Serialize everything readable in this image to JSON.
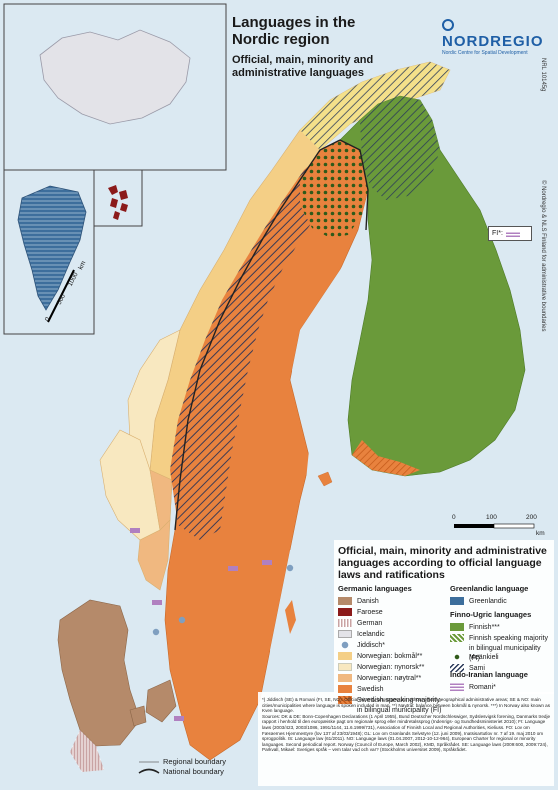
{
  "title": "Languages in the Nordic region",
  "subtitle": "Official, main, minority and administrative languages",
  "logo": {
    "name": "NORDREGIO",
    "tagline": "Nordic Centre for Spatial Development"
  },
  "map_id": "NRL 10145g",
  "copyright": "© Nordregio & NLS Finland for administrative boundaries",
  "inset_scale": {
    "labels": [
      "0",
      "500",
      "1000"
    ],
    "unit": "km"
  },
  "main_scale": {
    "labels": [
      "0",
      "100",
      "200"
    ],
    "unit": "km"
  },
  "fi_label": "FI*:",
  "legend": {
    "title": "Official, main, minority and administrative languages according to official language laws and ratifications",
    "groups": [
      {
        "heading": "Germanic languages",
        "items": [
          {
            "label": "Danish",
            "color": "#b58a6a",
            "pattern": "solid"
          },
          {
            "label": "Faroese",
            "color": "#8b1a1a",
            "pattern": "solid"
          },
          {
            "label": "German",
            "color": "#c9a3a3",
            "pattern": "vstripe"
          },
          {
            "label": "Icelandic",
            "color": "#e3e3e8",
            "pattern": "solid"
          },
          {
            "label": "Jiddisch*",
            "color": "#7f9fc0",
            "pattern": "dot"
          },
          {
            "label": "Norwegian: bokmål**",
            "color": "#f4cf86",
            "pattern": "solid"
          },
          {
            "label": "Norwegian: nynorsk**",
            "color": "#f8e8c0",
            "pattern": "solid"
          },
          {
            "label": "Norwegian: nøytral**",
            "color": "#f0b880",
            "pattern": "solid"
          },
          {
            "label": "Swedish",
            "color": "#e8823e",
            "pattern": "solid"
          },
          {
            "label": "Swedish speaking majority in bilingual municipality (FI)",
            "color": "#e8823e",
            "pattern": "hatch"
          }
        ]
      },
      {
        "heading": "Greenlandic language",
        "items": [
          {
            "label": "Greenlandic",
            "color": "#3d6e9c",
            "pattern": "solid"
          }
        ]
      },
      {
        "heading": "Finno-Ugric languages",
        "items": [
          {
            "label": "Finnish***",
            "color": "#6a9a3a",
            "pattern": "solid"
          },
          {
            "label": "Finnish speaking majority in bilingual municipality (FI)",
            "color": "#6a9a3a",
            "pattern": "hatch"
          },
          {
            "label": "Meänkieli",
            "color": "#2f5a1a",
            "pattern": "dot"
          },
          {
            "label": "Sami",
            "color": "#2a3a5a",
            "pattern": "hatch"
          }
        ]
      },
      {
        "heading": "Indo-Iranian language",
        "items": [
          {
            "label": "Romani*",
            "color": "#b080c0",
            "pattern": "hstripe"
          }
        ]
      }
    ]
  },
  "notes": "*) Jiddisch (SE) & Romani (FI, SE, NO): Official minority languages, but without official geographical administrative areas; SE & NO: main cities/municipalities where language is spoken included in map. **) Nøytral: balance between bokmål & nynorsk. ***) In Norway also known as Kven language.",
  "sources": "Sources: DK & DE: Bonn-Copenhagen Declarations (1 April 1955), Bund Deutscher Nordschleswiger, Sydslesvigsk forening, Danmarks tredje rapport i henhold til den europæiske pagt om regionale sprog eller mindretalssprog (Indenrigs- og Sundhedsministeriet 2010); FI: Language laws (2003/423, 2003/1086, 1991/1144, 11.6.1999/731), Association of Finnish Local and Regional Authorities, Kieliuss. FO: Lov om Færøernes Hjemmestyre (lov 137 af 23/03/1948); GL: Lov om Grønlands Selvstyre (12. juni 2009), Inatsisartutlov nr. 7 af 19. maj 2010 om sprogpolitik. IS: Language law (61/2011). NO: Language laws (01.04.2007, 2012-10-12-964), European Charter for regional or minority languages. Second periodical report. Norway (Council of Europe, March 2002), KMD, Språkrådet. SE: Language laws (2009:600, 2009:724), Parkvall, Mikael: Sveriges språk – vem talar vad och var? (Stockholms universitet 2009), Språkrådet.",
  "boundaries": {
    "regional": "Regional boundary",
    "national": "National boundary"
  }
}
